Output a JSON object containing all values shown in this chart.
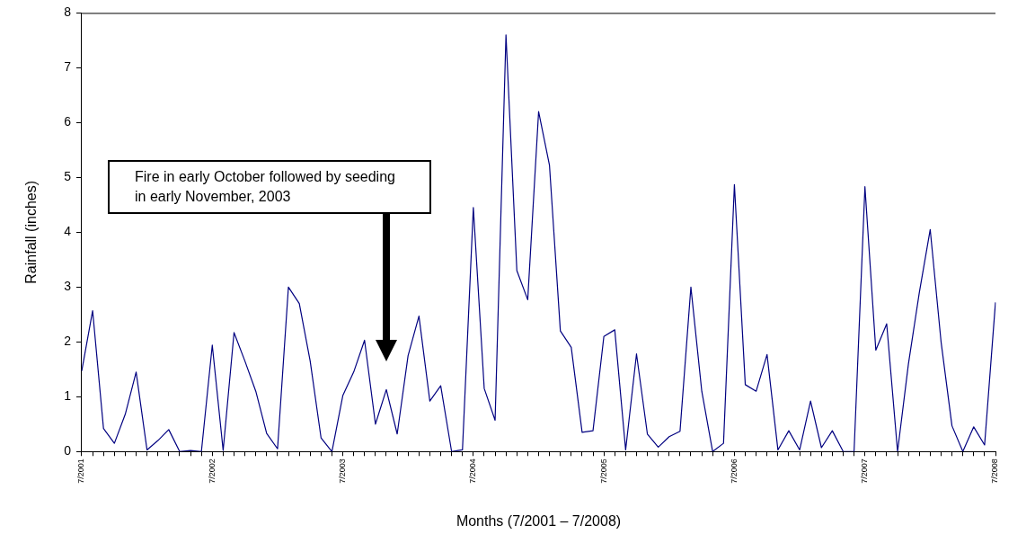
{
  "chart_data": {
    "type": "line",
    "xlabel": "Months (7/2001 – 7/2008)",
    "ylabel": "Rainfall (inches)",
    "categories": [
      "7/2001",
      null,
      null,
      null,
      null,
      null,
      null,
      null,
      null,
      null,
      null,
      null,
      "7/2002",
      null,
      null,
      null,
      null,
      null,
      null,
      null,
      null,
      null,
      null,
      null,
      "7/2003",
      null,
      null,
      null,
      null,
      null,
      null,
      null,
      null,
      null,
      null,
      null,
      "7/2004",
      null,
      null,
      null,
      null,
      null,
      null,
      null,
      null,
      null,
      null,
      null,
      "7/2005",
      null,
      null,
      null,
      null,
      null,
      null,
      null,
      null,
      null,
      null,
      null,
      "7/2006",
      null,
      null,
      null,
      null,
      null,
      null,
      null,
      null,
      null,
      null,
      null,
      "7/2007",
      null,
      null,
      null,
      null,
      null,
      null,
      null,
      null,
      null,
      null,
      null,
      "7/2008"
    ],
    "series": [
      {
        "color": "#000080",
        "values": [
          1.47,
          2.57,
          0.42,
          0.15,
          0.68,
          1.45,
          0.03,
          0.2,
          0.4,
          0.0,
          0.02,
          0.0,
          1.94,
          0.02,
          2.17,
          1.65,
          1.1,
          0.33,
          0.05,
          3.0,
          2.7,
          1.65,
          0.25,
          0.0,
          1.02,
          1.45,
          2.03,
          0.5,
          1.13,
          0.32,
          1.75,
          2.47,
          0.92,
          1.2,
          0.0,
          0.03,
          4.45,
          1.15,
          0.57,
          7.6,
          3.3,
          2.77,
          6.2,
          5.22,
          2.2,
          1.9,
          0.35,
          0.38,
          2.1,
          2.22,
          0.03,
          1.78,
          0.32,
          0.08,
          0.27,
          0.37,
          3.0,
          1.1,
          0.0,
          0.15,
          4.87,
          1.22,
          1.1,
          1.77,
          0.03,
          0.38,
          0.03,
          0.92,
          0.07,
          0.38,
          0.0,
          0.0,
          4.83,
          1.85,
          2.33,
          0.0,
          1.6,
          2.9,
          4.05,
          2.0,
          0.47,
          0.0,
          0.45,
          0.12,
          2.72
        ]
      }
    ],
    "ylim": [
      0,
      8
    ],
    "yticks": [
      0,
      1,
      2,
      3,
      4,
      5,
      6,
      7,
      8
    ],
    "grid": false,
    "legend": false,
    "marker": "none",
    "line_style": "solid",
    "annotations": [
      "Fire in early October followed by seeding in early November, 2003"
    ]
  }
}
